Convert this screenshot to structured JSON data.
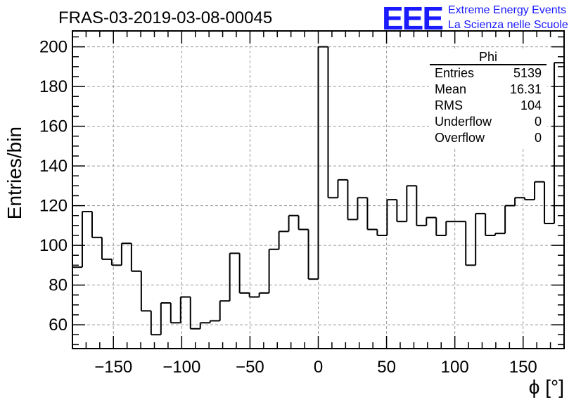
{
  "chart_data": {
    "type": "bar",
    "title": "FRAS-03-2019-03-08-00045",
    "xlabel": "ϕ [°]",
    "ylabel": "Entries/bin",
    "xlim": [
      -180,
      180
    ],
    "ylim": [
      48,
      208
    ],
    "grid": true,
    "x_ticks": [
      -150,
      -100,
      -50,
      0,
      50,
      100,
      150
    ],
    "x_tick_labels": [
      "−150",
      "−100",
      "−50",
      "0",
      "50",
      "100",
      "150"
    ],
    "y_ticks": [
      60,
      80,
      100,
      120,
      140,
      160,
      180,
      200
    ],
    "y_tick_labels": [
      "60",
      "80",
      "100",
      "120",
      "140",
      "160",
      "180",
      "200"
    ],
    "bin_width": 7.2,
    "bin_edges_start": -180,
    "values": [
      89,
      117,
      104,
      93,
      90,
      101,
      87,
      67,
      55,
      71,
      61,
      74,
      58,
      61,
      62,
      72,
      96,
      76,
      74,
      76,
      98,
      107,
      115,
      108,
      83,
      200,
      124,
      133,
      113,
      124,
      108,
      105,
      123,
      112,
      130,
      110,
      114,
      105,
      112,
      112,
      90,
      116,
      105,
      106,
      120,
      124,
      123,
      132,
      111,
      192
    ],
    "stats_box": {
      "title": "Phi",
      "rows": [
        {
          "label": "Entries",
          "value": "5139"
        },
        {
          "label": "Mean",
          "value": "16.31"
        },
        {
          "label": "RMS",
          "value": "104"
        },
        {
          "label": "Underflow",
          "value": "0"
        },
        {
          "label": "Overflow",
          "value": "0"
        }
      ]
    },
    "logo": {
      "mark": "EEE",
      "line1": "Extreme Energy Events",
      "line2": "La Scienza nelle Scuole",
      "color": "#1a1aff"
    }
  }
}
